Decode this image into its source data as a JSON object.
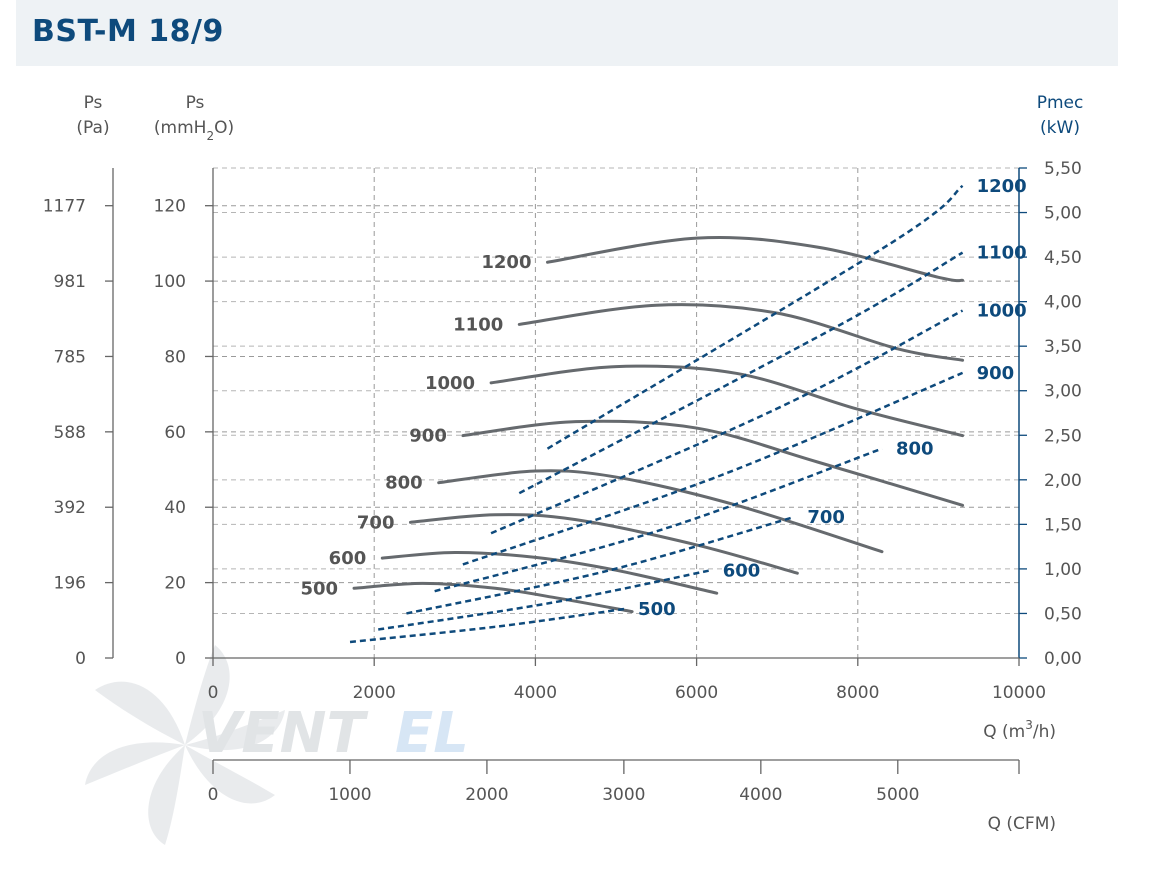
{
  "title": "BST-M 18/9",
  "chart_data": {
    "type": "line",
    "x_axis": {
      "label": "Q (m³/h)",
      "unit_label_parts": [
        "Q (m",
        "3",
        "/h)"
      ],
      "range": [
        0,
        10000
      ],
      "ticks": [
        0,
        2000,
        4000,
        6000,
        8000,
        10000
      ]
    },
    "x_axis_secondary": {
      "label": "Q (CFM)",
      "range": [
        0,
        5885
      ],
      "ticks": [
        0,
        1000,
        2000,
        3000,
        4000,
        5000
      ]
    },
    "y_axis_left_pa": {
      "label_line1": "Ps",
      "label_line2": "(Pa)",
      "ticks": [
        0,
        196,
        392,
        588,
        785,
        981,
        1177
      ],
      "tick_positions_mmH2O": [
        0,
        20,
        40,
        60,
        80,
        100,
        120
      ]
    },
    "y_axis_left_mm": {
      "label_line1": "Ps",
      "label_line2_parts": [
        "(mmH",
        "2",
        "O)"
      ],
      "range": [
        0,
        130
      ],
      "ticks": [
        0,
        20,
        40,
        60,
        80,
        100,
        120
      ]
    },
    "y_axis_right": {
      "label_line1": "Pmec",
      "label_line2": "(kW)",
      "range": [
        0,
        5.5
      ],
      "ticks": [
        0,
        0.5,
        1.0,
        1.5,
        2.0,
        2.5,
        3.0,
        3.5,
        4.0,
        4.5,
        5.0,
        5.5
      ],
      "tick_labels": [
        "0,00",
        "0,50",
        "1,00",
        "1,50",
        "2,00",
        "2,50",
        "3,00",
        "3,50",
        "4,00",
        "4,50",
        "5,00",
        "5,50"
      ]
    },
    "grid": true,
    "pressure_series": [
      {
        "name": "500",
        "x": [
          1750,
          2600,
          3500,
          4300,
          5200
        ],
        "y": [
          18.5,
          19.8,
          18.5,
          15.8,
          12.3
        ]
      },
      {
        "name": "600",
        "x": [
          2100,
          3000,
          4000,
          5000,
          6250
        ],
        "y": [
          26.5,
          28.0,
          26.7,
          23.3,
          17.2
        ]
      },
      {
        "name": "700",
        "x": [
          2450,
          3500,
          4500,
          6000,
          7250
        ],
        "y": [
          36.0,
          38.0,
          36.7,
          30.0,
          22.5
        ]
      },
      {
        "name": "800",
        "x": [
          2800,
          4000,
          5000,
          6500,
          8300
        ],
        "y": [
          46.5,
          49.6,
          48.0,
          40.5,
          28.2
        ]
      },
      {
        "name": "900",
        "x": [
          3100,
          4500,
          6000,
          7500,
          9300
        ],
        "y": [
          59.0,
          62.7,
          61.0,
          52.0,
          40.5
        ]
      },
      {
        "name": "1000",
        "x": [
          3450,
          5000,
          6500,
          8000,
          9300
        ],
        "y": [
          73.0,
          77.3,
          75.5,
          66.0,
          59.0
        ]
      },
      {
        "name": "1100",
        "x": [
          3800,
          5500,
          7000,
          8500,
          9300
        ],
        "y": [
          88.5,
          93.6,
          91.5,
          82.0,
          79.0
        ]
      },
      {
        "name": "1200",
        "x": [
          4150,
          6000,
          7500,
          9000,
          9300
        ],
        "y": [
          105.0,
          111.4,
          109.0,
          101.0,
          100.2
        ]
      }
    ],
    "power_series": [
      {
        "name": "500",
        "x": [
          1700,
          3500,
          5100
        ],
        "y": [
          0.18,
          0.35,
          0.55
        ]
      },
      {
        "name": "600",
        "x": [
          2050,
          4200,
          6150
        ],
        "y": [
          0.32,
          0.62,
          0.98
        ]
      },
      {
        "name": "700",
        "x": [
          2400,
          4900,
          7200
        ],
        "y": [
          0.5,
          0.98,
          1.58
        ]
      },
      {
        "name": "800",
        "x": [
          2750,
          5600,
          8300
        ],
        "y": [
          0.75,
          1.45,
          2.35
        ]
      },
      {
        "name": "900",
        "x": [
          3100,
          6300,
          9300
        ],
        "y": [
          1.05,
          2.05,
          3.2
        ]
      },
      {
        "name": "1000",
        "x": [
          3450,
          7000,
          9300
        ],
        "y": [
          1.4,
          2.8,
          3.9
        ]
      },
      {
        "name": "1100",
        "x": [
          3800,
          7700,
          9300
        ],
        "y": [
          1.85,
          3.7,
          4.55
        ]
      },
      {
        "name": "1200",
        "x": [
          4150,
          8400,
          9300
        ],
        "y": [
          2.35,
          4.65,
          5.3
        ]
      }
    ]
  },
  "logo": {
    "text_a": "VENT",
    "text_b": "EL"
  }
}
